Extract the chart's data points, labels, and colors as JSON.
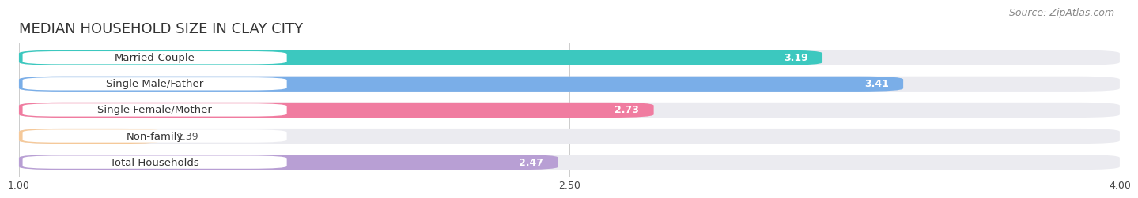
{
  "title": "MEDIAN HOUSEHOLD SIZE IN CLAY CITY",
  "source": "Source: ZipAtlas.com",
  "categories": [
    "Married-Couple",
    "Single Male/Father",
    "Single Female/Mother",
    "Non-family",
    "Total Households"
  ],
  "values": [
    3.19,
    3.41,
    2.73,
    1.39,
    2.47
  ],
  "bar_colors": [
    "#3cc8bf",
    "#7aaee8",
    "#f07ca0",
    "#f5c99a",
    "#b89fd4"
  ],
  "xlim": [
    1.0,
    4.0
  ],
  "xticks": [
    1.0,
    2.5,
    4.0
  ],
  "xtick_labels": [
    "1.00",
    "2.50",
    "4.00"
  ],
  "bg_color": "#ffffff",
  "bar_bg_color": "#ebebf0",
  "title_fontsize": 13,
  "source_fontsize": 9,
  "label_fontsize": 9.5,
  "value_fontsize": 9
}
